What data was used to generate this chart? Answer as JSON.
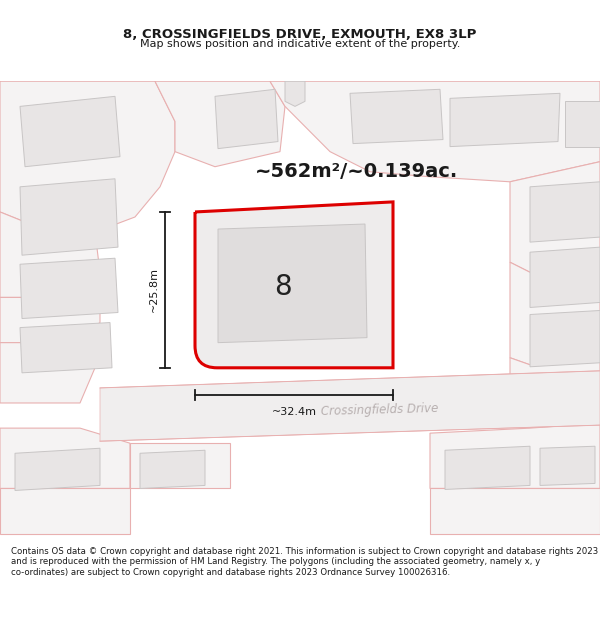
{
  "title_line1": "8, CROSSINGFIELDS DRIVE, EXMOUTH, EX8 3LP",
  "title_line2": "Map shows position and indicative extent of the property.",
  "area_text": "~562m²/~0.139ac.",
  "plot_label": "8",
  "dim_width": "~32.4m",
  "dim_height": "~25.8m",
  "road_label": "Crossingfields Drive",
  "footer_text": "Contains OS data © Crown copyright and database right 2021. This information is subject to Crown copyright and database rights 2023 and is reproduced with the permission of HM Land Registry. The polygons (including the associated geometry, namely x, y co-ordinates) are subject to Crown copyright and database rights 2023 Ordnance Survey 100026316.",
  "map_bg": "#ffffff",
  "plot_fill": "#eeecec",
  "plot_border": "#dd0000",
  "building_fill": "#e8e5e5",
  "building_border": "#c8c5c5",
  "parcel_fill": "#f5f3f3",
  "parcel_border": "#e8b0b0",
  "road_color": "#f0eeee",
  "road_label_color": "#b8b0b0",
  "dim_line_color": "#1a1a1a",
  "title_color": "#1a1a1a",
  "footer_color": "#1a1a1a",
  "area_color": "#1a1a1a"
}
